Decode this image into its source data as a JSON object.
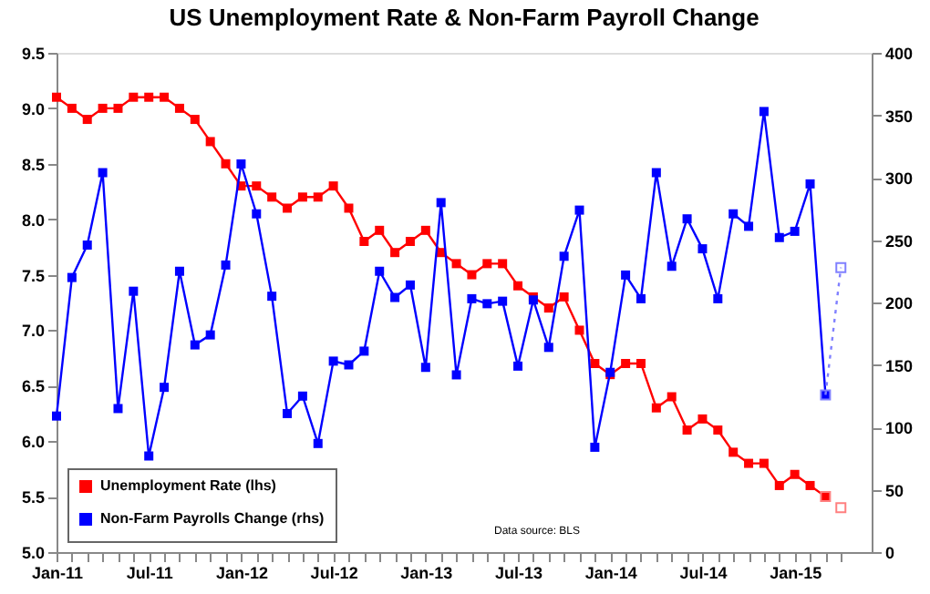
{
  "chart_data": {
    "type": "line",
    "title": "US Unemployment Rate & Non-Farm Payroll Change",
    "categories": [
      "Jan-11",
      null,
      null,
      null,
      null,
      null,
      "Jul-11",
      null,
      null,
      null,
      null,
      null,
      "Jan-12",
      null,
      null,
      null,
      null,
      null,
      "Jul-12",
      null,
      null,
      null,
      null,
      null,
      "Jan-13",
      null,
      null,
      null,
      null,
      null,
      "Jul-13",
      null,
      null,
      null,
      null,
      null,
      "Jan-14",
      null,
      null,
      null,
      null,
      null,
      "Jul-14",
      null,
      null,
      null,
      null,
      null,
      "Jan-15",
      null,
      null,
      null
    ],
    "series": [
      {
        "name": "Unemployment Rate (lhs)",
        "color": "#ff0000",
        "values": [
          9.1,
          9.0,
          8.9,
          9.0,
          9.0,
          9.1,
          9.1,
          9.1,
          9.0,
          8.9,
          8.7,
          8.5,
          8.3,
          8.3,
          8.2,
          8.1,
          8.2,
          8.2,
          8.3,
          8.1,
          7.8,
          7.9,
          7.7,
          7.8,
          7.9,
          7.7,
          7.6,
          7.5,
          7.6,
          7.6,
          7.4,
          7.3,
          7.2,
          7.3,
          7.0,
          6.7,
          6.6,
          6.7,
          6.7,
          6.3,
          6.4,
          6.1,
          6.2,
          6.1,
          5.9,
          5.8,
          5.8,
          5.6,
          5.7,
          5.6,
          5.5,
          null
        ]
      },
      {
        "name": "Non-Farm Payrolls Change (rhs)",
        "color": "#0000ff",
        "axis": "y2",
        "values": [
          109,
          220,
          246,
          304,
          115,
          209,
          77,
          132,
          225,
          166,
          174,
          230,
          311,
          271,
          205,
          111,
          125,
          87,
          153,
          150,
          161,
          225,
          204,
          214,
          148,
          280,
          142,
          203,
          199,
          201,
          149,
          202,
          164,
          237,
          274,
          84,
          144,
          222,
          203,
          304,
          229,
          267,
          243,
          203,
          271,
          261,
          353,
          252,
          257,
          295,
          126,
          null
        ]
      },
      {
        "color": "#ff8080",
        "type": "scatter",
        "values": [
          null,
          null,
          null,
          null,
          null,
          null,
          null,
          null,
          null,
          null,
          null,
          null,
          null,
          null,
          null,
          null,
          null,
          null,
          null,
          null,
          null,
          null,
          null,
          null,
          null,
          null,
          null,
          null,
          null,
          null,
          null,
          null,
          null,
          null,
          null,
          null,
          null,
          null,
          null,
          null,
          null,
          null,
          null,
          null,
          null,
          null,
          null,
          null,
          null,
          null,
          5.5,
          5.4
        ]
      },
      {
        "color": "#8080ff",
        "line_style": "dotted",
        "axis": "y2",
        "values": [
          null,
          null,
          null,
          null,
          null,
          null,
          null,
          null,
          null,
          null,
          null,
          null,
          null,
          null,
          null,
          null,
          null,
          null,
          null,
          null,
          null,
          null,
          null,
          null,
          null,
          null,
          null,
          null,
          null,
          null,
          null,
          null,
          null,
          null,
          null,
          null,
          null,
          null,
          null,
          null,
          null,
          null,
          null,
          null,
          null,
          null,
          null,
          null,
          null,
          null,
          126,
          228
        ]
      }
    ],
    "ylim": [
      5.0,
      9.5
    ],
    "yticks": [
      {
        "value": 5.0,
        "label": "5.0"
      },
      5.5,
      {
        "value": 6.0,
        "label": "6.0"
      },
      6.5,
      {
        "value": 7.0,
        "label": "7.0"
      },
      7.5,
      {
        "value": 8.0,
        "label": "8.0"
      },
      8.5,
      {
        "value": 9.0,
        "label": "9.0"
      },
      9.5
    ],
    "y2lim": [
      0,
      400
    ],
    "y2ticks": [
      0,
      50,
      100,
      150,
      200,
      250,
      300,
      350,
      400
    ],
    "annotations": [
      "Data source: BLS"
    ],
    "marker": "square",
    "line_style": "solid",
    "grid": false,
    "legend": "bottom left"
  }
}
